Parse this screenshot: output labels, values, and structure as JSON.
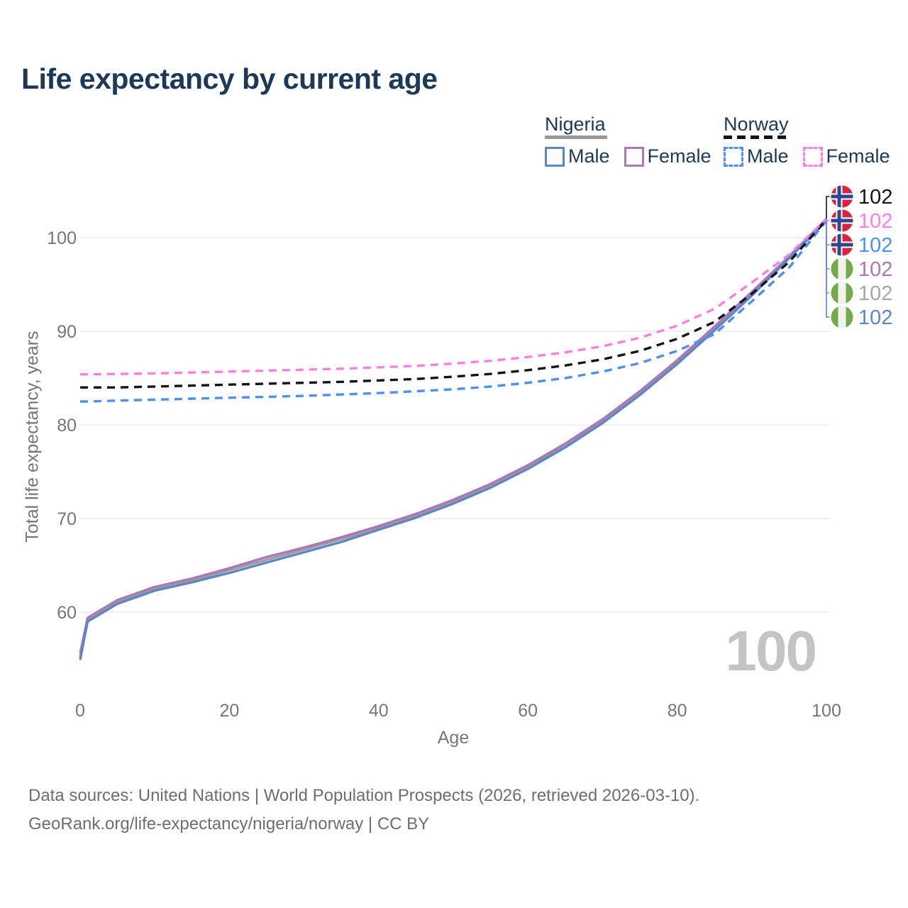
{
  "title": "Life expectancy by current age",
  "age_counter": "100",
  "legend": {
    "groups": [
      {
        "name": "Nigeria",
        "line_style": "solid",
        "underline_color": "#999999",
        "items": [
          {
            "label": "Male",
            "color": "#5b87c5"
          },
          {
            "label": "Female",
            "color": "#ad76b5"
          }
        ]
      },
      {
        "name": "Norway",
        "line_style": "dashed",
        "underline_color": "#141414",
        "items": [
          {
            "label": "Male",
            "color": "#4a90f5"
          },
          {
            "label": "Female",
            "color": "#fc7de8"
          }
        ]
      }
    ]
  },
  "footer": {
    "line1": "Data sources: United Nations | World Population Prospects (2026, retrieved 2026-03-10).",
    "line2": "GeoRank.org/life-expectancy/nigeria/norway | CC BY"
  },
  "chart_data": {
    "type": "line",
    "title": "Life expectancy by current age",
    "x_label": "Age",
    "y_label": "Total life expectancy, years",
    "xlim": [
      0,
      100
    ],
    "ylim": [
      54,
      103
    ],
    "x_ticks": [
      0,
      20,
      40,
      60,
      80,
      100
    ],
    "y_ticks": [
      60,
      70,
      80,
      90,
      100
    ],
    "grid": "horizontal-only",
    "legend_position": "top-right",
    "ages": [
      0,
      1,
      5,
      10,
      15,
      20,
      25,
      30,
      35,
      40,
      45,
      50,
      55,
      60,
      65,
      70,
      75,
      80,
      85,
      90,
      95,
      100
    ],
    "series": [
      {
        "name": "Norway Total",
        "country": "norway",
        "sex": "total",
        "line": "dashed",
        "color": "#141414",
        "label_color": "#141414",
        "end_label": "102",
        "values": [
          84.0,
          84.0,
          84.0,
          84.1,
          84.2,
          84.3,
          84.4,
          84.5,
          84.6,
          84.75,
          84.9,
          85.15,
          85.45,
          85.85,
          86.35,
          87.0,
          87.9,
          89.2,
          91.0,
          94.0,
          97.4,
          101.9
        ]
      },
      {
        "name": "Norway Female",
        "country": "norway",
        "sex": "female",
        "line": "dashed",
        "color": "#fc7de8",
        "label_color": "#fc7de8",
        "end_label": "102",
        "values": [
          85.4,
          85.4,
          85.45,
          85.5,
          85.6,
          85.7,
          85.8,
          85.9,
          86.0,
          86.15,
          86.3,
          86.55,
          86.85,
          87.25,
          87.75,
          88.4,
          89.3,
          90.6,
          92.4,
          95.2,
          98.2,
          102.0
        ]
      },
      {
        "name": "Norway Male",
        "country": "norway",
        "sex": "male",
        "line": "dashed",
        "color": "#4a90f5",
        "label_color": "#4a90f5",
        "end_label": "102",
        "values": [
          82.5,
          82.5,
          82.6,
          82.7,
          82.8,
          82.9,
          83.0,
          83.1,
          83.25,
          83.4,
          83.6,
          83.8,
          84.1,
          84.5,
          85.0,
          85.7,
          86.6,
          87.9,
          89.7,
          93.2,
          96.8,
          101.8
        ]
      },
      {
        "name": "Nigeria Female",
        "country": "nigeria",
        "sex": "female",
        "line": "solid",
        "color": "#ad76b5",
        "label_color": "#ad76b5",
        "end_label": "102",
        "values": [
          55.6,
          59.4,
          61.3,
          62.7,
          63.6,
          64.7,
          65.9,
          66.9,
          68.0,
          69.2,
          70.5,
          72.0,
          73.7,
          75.7,
          78.0,
          80.6,
          83.6,
          86.9,
          90.5,
          94.2,
          98.0,
          102.0
        ]
      },
      {
        "name": "Nigeria Total",
        "country": "nigeria",
        "sex": "total",
        "line": "solid",
        "color": "#9e9e9e",
        "label_color": "#a6a6a6",
        "end_label": "102",
        "values": [
          55.2,
          59.2,
          61.1,
          62.5,
          63.4,
          64.5,
          65.6,
          66.7,
          67.8,
          69.0,
          70.3,
          71.8,
          73.5,
          75.5,
          77.8,
          80.4,
          83.4,
          86.7,
          90.3,
          94.0,
          97.9,
          101.9
        ]
      },
      {
        "name": "Nigeria Male",
        "country": "nigeria",
        "sex": "male",
        "line": "solid",
        "color": "#5b87c5",
        "label_color": "#5b87c5",
        "end_label": "102",
        "values": [
          54.9,
          59.0,
          60.9,
          62.3,
          63.2,
          64.2,
          65.3,
          66.4,
          67.5,
          68.8,
          70.1,
          71.6,
          73.3,
          75.3,
          77.6,
          80.2,
          83.2,
          86.5,
          90.1,
          93.8,
          97.8,
          101.8
        ]
      }
    ],
    "flag_colors": {
      "norway": {
        "red": "#d8253d",
        "blue": "#2a4795",
        "white": "#ffffff"
      },
      "nigeria": {
        "green": "#74a94c",
        "white": "#f3f3ee"
      }
    }
  }
}
